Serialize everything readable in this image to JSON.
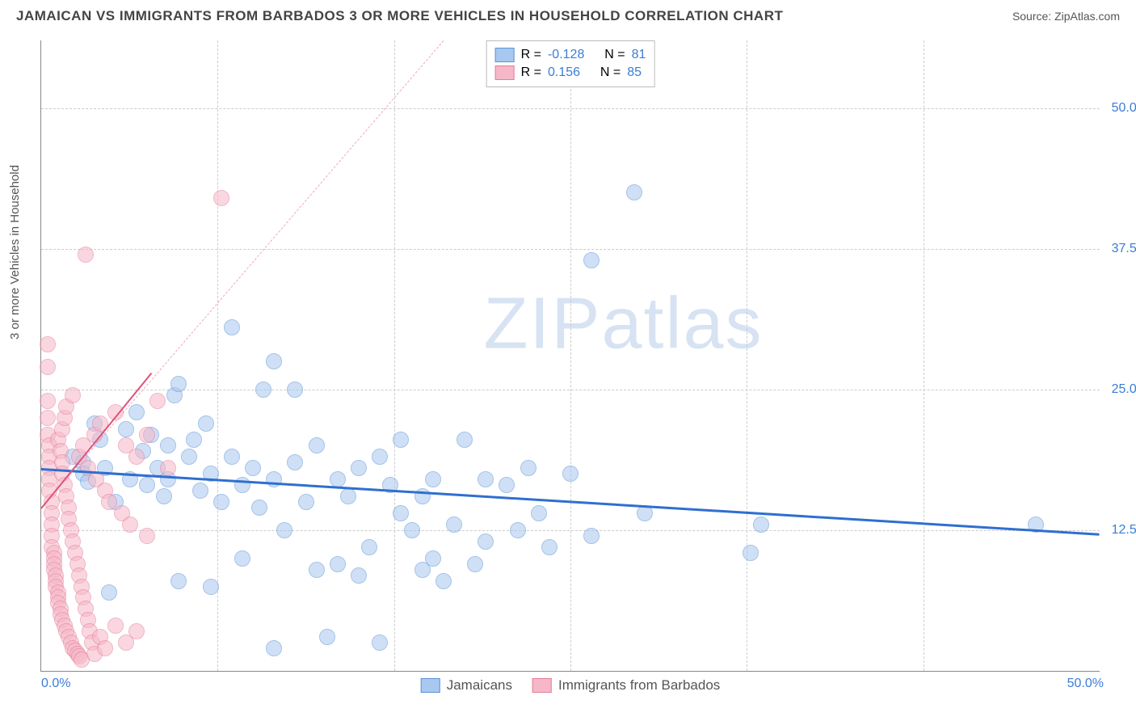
{
  "header": {
    "title": "JAMAICAN VS IMMIGRANTS FROM BARBADOS 3 OR MORE VEHICLES IN HOUSEHOLD CORRELATION CHART",
    "source": "Source: ZipAtlas.com"
  },
  "chart": {
    "type": "scatter",
    "ylabel": "3 or more Vehicles in Household",
    "watermark1": "ZIP",
    "watermark2": "atlas",
    "xlim": [
      0,
      50
    ],
    "ylim": [
      0,
      56
    ],
    "x_origin_label": "0.0%",
    "x_max_label": "50.0%",
    "yticks": [
      {
        "v": 12.5,
        "label": "12.5%"
      },
      {
        "v": 25.0,
        "label": "25.0%"
      },
      {
        "v": 37.5,
        "label": "37.5%"
      },
      {
        "v": 50.0,
        "label": "50.0%"
      }
    ],
    "x_grid": [
      8.33,
      16.67,
      25.0,
      33.33,
      41.67
    ],
    "marker_radius": 9,
    "marker_opacity": 0.55,
    "series": [
      {
        "name": "Jamaicans",
        "fill": "#a8c8ef",
        "stroke": "#5b93d6",
        "R": "-0.128",
        "N": "81",
        "trend": {
          "x1": 0,
          "y1": 18.0,
          "x2": 50,
          "y2": 12.2,
          "color": "#2f6fcf",
          "width": 2.5
        },
        "points": [
          [
            1.5,
            19.0
          ],
          [
            2.0,
            18.5
          ],
          [
            2.0,
            17.5
          ],
          [
            2.2,
            16.8
          ],
          [
            2.5,
            22.0
          ],
          [
            2.8,
            20.5
          ],
          [
            3.0,
            18.0
          ],
          [
            3.2,
            7.0
          ],
          [
            3.5,
            15.0
          ],
          [
            4.0,
            21.5
          ],
          [
            4.2,
            17.0
          ],
          [
            4.5,
            23.0
          ],
          [
            4.8,
            19.5
          ],
          [
            5.0,
            16.5
          ],
          [
            5.2,
            21.0
          ],
          [
            5.5,
            18.0
          ],
          [
            5.8,
            15.5
          ],
          [
            6.0,
            17.0
          ],
          [
            6.0,
            20.0
          ],
          [
            6.3,
            24.5
          ],
          [
            6.5,
            8.0
          ],
          [
            6.5,
            25.5
          ],
          [
            7.0,
            19.0
          ],
          [
            7.2,
            20.5
          ],
          [
            7.5,
            16.0
          ],
          [
            7.8,
            22.0
          ],
          [
            8.0,
            7.5
          ],
          [
            8.0,
            17.5
          ],
          [
            8.5,
            15.0
          ],
          [
            9.0,
            19.0
          ],
          [
            9.0,
            30.5
          ],
          [
            9.5,
            10.0
          ],
          [
            9.5,
            16.5
          ],
          [
            10.0,
            18.0
          ],
          [
            10.3,
            14.5
          ],
          [
            10.5,
            25.0
          ],
          [
            11.0,
            17.0
          ],
          [
            11.0,
            2.0
          ],
          [
            11.0,
            27.5
          ],
          [
            11.5,
            12.5
          ],
          [
            12.0,
            18.5
          ],
          [
            12.0,
            25.0
          ],
          [
            12.5,
            15.0
          ],
          [
            13.0,
            20.0
          ],
          [
            13.0,
            9.0
          ],
          [
            13.5,
            3.0
          ],
          [
            14.0,
            9.5
          ],
          [
            14.0,
            17.0
          ],
          [
            14.5,
            15.5
          ],
          [
            15.0,
            18.0
          ],
          [
            15.0,
            8.5
          ],
          [
            15.5,
            11.0
          ],
          [
            16.0,
            19.0
          ],
          [
            16.0,
            2.5
          ],
          [
            16.5,
            16.5
          ],
          [
            17.0,
            14.0
          ],
          [
            17.0,
            20.5
          ],
          [
            17.5,
            12.5
          ],
          [
            18.0,
            9.0
          ],
          [
            18.0,
            15.5
          ],
          [
            18.5,
            17.0
          ],
          [
            18.5,
            10.0
          ],
          [
            19.0,
            8.0
          ],
          [
            19.5,
            13.0
          ],
          [
            20.0,
            20.5
          ],
          [
            20.5,
            9.5
          ],
          [
            21.0,
            11.5
          ],
          [
            21.0,
            17.0
          ],
          [
            22.0,
            16.5
          ],
          [
            22.5,
            12.5
          ],
          [
            23.0,
            18.0
          ],
          [
            23.5,
            14.0
          ],
          [
            24.0,
            11.0
          ],
          [
            25.0,
            17.5
          ],
          [
            26.0,
            12.0
          ],
          [
            26.0,
            36.5
          ],
          [
            28.0,
            42.5
          ],
          [
            28.5,
            14.0
          ],
          [
            33.5,
            10.5
          ],
          [
            34.0,
            13.0
          ],
          [
            47.0,
            13.0
          ]
        ]
      },
      {
        "name": "Immigrants from Barbados",
        "fill": "#f6b8c8",
        "stroke": "#e57b9a",
        "R": "0.156",
        "N": "85",
        "trend": {
          "x1": 0,
          "y1": 14.5,
          "x2": 5.2,
          "y2": 26.5,
          "color": "#e0527a",
          "width": 2
        },
        "ref": {
          "x1": 0,
          "y1": 14.5,
          "x2": 19.0,
          "y2": 56.0,
          "color": "#f2a8bb"
        },
        "points": [
          [
            0.3,
            29.0
          ],
          [
            0.3,
            27.0
          ],
          [
            0.3,
            24.0
          ],
          [
            0.3,
            22.5
          ],
          [
            0.3,
            21.0
          ],
          [
            0.4,
            20.0
          ],
          [
            0.4,
            19.0
          ],
          [
            0.4,
            18.0
          ],
          [
            0.4,
            17.0
          ],
          [
            0.4,
            16.0
          ],
          [
            0.5,
            15.0
          ],
          [
            0.5,
            14.0
          ],
          [
            0.5,
            13.0
          ],
          [
            0.5,
            12.0
          ],
          [
            0.5,
            11.0
          ],
          [
            0.6,
            10.5
          ],
          [
            0.6,
            10.0
          ],
          [
            0.6,
            9.5
          ],
          [
            0.6,
            9.0
          ],
          [
            0.7,
            8.5
          ],
          [
            0.7,
            8.0
          ],
          [
            0.7,
            7.5
          ],
          [
            0.8,
            7.0
          ],
          [
            0.8,
            6.5
          ],
          [
            0.8,
            6.0
          ],
          [
            0.8,
            20.5
          ],
          [
            0.9,
            5.5
          ],
          [
            0.9,
            5.0
          ],
          [
            0.9,
            19.5
          ],
          [
            1.0,
            18.5
          ],
          [
            1.0,
            21.5
          ],
          [
            1.0,
            4.5
          ],
          [
            1.0,
            17.5
          ],
          [
            1.1,
            16.5
          ],
          [
            1.1,
            22.5
          ],
          [
            1.1,
            4.0
          ],
          [
            1.2,
            15.5
          ],
          [
            1.2,
            3.5
          ],
          [
            1.2,
            23.5
          ],
          [
            1.3,
            14.5
          ],
          [
            1.3,
            3.0
          ],
          [
            1.3,
            13.5
          ],
          [
            1.4,
            12.5
          ],
          [
            1.4,
            2.5
          ],
          [
            1.5,
            11.5
          ],
          [
            1.5,
            2.0
          ],
          [
            1.5,
            24.5
          ],
          [
            1.6,
            10.5
          ],
          [
            1.6,
            1.8
          ],
          [
            1.7,
            9.5
          ],
          [
            1.7,
            1.5
          ],
          [
            1.8,
            8.5
          ],
          [
            1.8,
            1.3
          ],
          [
            1.8,
            19.0
          ],
          [
            1.9,
            7.5
          ],
          [
            1.9,
            1.0
          ],
          [
            2.0,
            6.5
          ],
          [
            2.0,
            20.0
          ],
          [
            2.1,
            5.5
          ],
          [
            2.1,
            37.0
          ],
          [
            2.2,
            4.5
          ],
          [
            2.2,
            18.0
          ],
          [
            2.3,
            3.5
          ],
          [
            2.4,
            2.5
          ],
          [
            2.5,
            21.0
          ],
          [
            2.5,
            1.5
          ],
          [
            2.6,
            17.0
          ],
          [
            2.8,
            22.0
          ],
          [
            2.8,
            3.0
          ],
          [
            3.0,
            16.0
          ],
          [
            3.0,
            2.0
          ],
          [
            3.2,
            15.0
          ],
          [
            3.5,
            23.0
          ],
          [
            3.5,
            4.0
          ],
          [
            3.8,
            14.0
          ],
          [
            4.0,
            2.5
          ],
          [
            4.0,
            20.0
          ],
          [
            4.2,
            13.0
          ],
          [
            4.5,
            3.5
          ],
          [
            4.5,
            19.0
          ],
          [
            5.0,
            12.0
          ],
          [
            5.0,
            21.0
          ],
          [
            5.5,
            24.0
          ],
          [
            6.0,
            18.0
          ],
          [
            8.5,
            42.0
          ]
        ]
      }
    ],
    "legend_top": {
      "r_label": "R =",
      "n_label": "N ="
    },
    "legend_bottom": [
      {
        "label": "Jamaicans",
        "fill": "#a8c8ef",
        "stroke": "#5b93d6"
      },
      {
        "label": "Immigrants from Barbados",
        "fill": "#f6b8c8",
        "stroke": "#e57b9a"
      }
    ]
  }
}
